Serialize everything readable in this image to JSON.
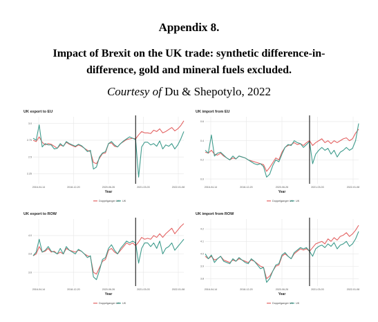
{
  "header": {
    "appendix": "Appendix 8.",
    "title_line1": "Impact of Brexit on the UK trade: synthetic difference-in-",
    "title_line2": "difference, gold and mineral fuels excluded.",
    "courtesy_italic": "Courtesy of",
    "courtesy_rest": " Du & Shepotylo, 2022"
  },
  "colors": {
    "doppelganger": "#e36262",
    "uk": "#3e9b8c",
    "brexit_line": "#000000",
    "grid": "#e6e6e6"
  },
  "chart_data": [
    {
      "type": "line",
      "title": "UK export to EU",
      "xlabel": "Year",
      "xticks": [
        "2016-04-14",
        "2018-12-20",
        "2020-06-26",
        "2021-03-03",
        "2022-01-08"
      ],
      "yticks": [
        "2.25",
        "2.5",
        "2.75",
        "3.0"
      ],
      "ylim": [
        2.1,
        3.1
      ],
      "event_index": 34,
      "legend": [
        "Doppelganger UK",
        "UK"
      ],
      "series": [
        {
          "name": "Doppelganger UK",
          "values": [
            2.75,
            2.73,
            2.8,
            2.72,
            2.68,
            2.7,
            2.69,
            2.66,
            2.63,
            2.68,
            2.66,
            2.72,
            2.69,
            2.67,
            2.65,
            2.68,
            2.66,
            2.63,
            2.6,
            2.58,
            2.42,
            2.4,
            2.48,
            2.55,
            2.56,
            2.7,
            2.71,
            2.66,
            2.65,
            2.7,
            2.73,
            2.76,
            2.77,
            2.78,
            2.77,
            2.83,
            2.88,
            2.86,
            2.86,
            2.85,
            2.9,
            2.88,
            2.92,
            2.86,
            2.88,
            2.91,
            2.94,
            2.89,
            2.92,
            2.97,
            3.04
          ]
        },
        {
          "name": "UK",
          "values": [
            2.78,
            2.75,
            2.98,
            2.65,
            2.7,
            2.68,
            2.68,
            2.62,
            2.63,
            2.7,
            2.66,
            2.73,
            2.7,
            2.68,
            2.66,
            2.69,
            2.67,
            2.63,
            2.58,
            2.6,
            2.32,
            2.35,
            2.5,
            2.56,
            2.58,
            2.7,
            2.73,
            2.68,
            2.65,
            2.7,
            2.74,
            2.77,
            2.8,
            2.78,
            2.76,
            2.2,
            2.65,
            2.72,
            2.72,
            2.68,
            2.7,
            2.66,
            2.74,
            2.62,
            2.68,
            2.66,
            2.7,
            2.62,
            2.68,
            2.77,
            2.88
          ]
        }
      ]
    },
    {
      "type": "line",
      "title": "UK import from EU",
      "xlabel": "Year",
      "xticks": [
        "2016-04-14",
        "2018-12-20",
        "2020-06-26",
        "2021-03-03",
        "2022-01-08"
      ],
      "yticks": [
        "0.0",
        "0.2",
        "0.4",
        "0.6"
      ],
      "ylim": [
        -0.05,
        0.65
      ],
      "event_index": 34,
      "legend": [
        "Doppelganger UK",
        "UK"
      ],
      "series": [
        {
          "name": "Doppelganger UK",
          "values": [
            0.28,
            0.27,
            0.3,
            0.26,
            0.25,
            0.27,
            0.24,
            0.22,
            0.2,
            0.22,
            0.21,
            0.24,
            0.23,
            0.22,
            0.2,
            0.19,
            0.18,
            0.17,
            0.16,
            0.15,
            0.08,
            0.12,
            0.17,
            0.22,
            0.2,
            0.28,
            0.33,
            0.35,
            0.36,
            0.38,
            0.36,
            0.37,
            0.35,
            0.38,
            0.4,
            0.35,
            0.38,
            0.4,
            0.42,
            0.38,
            0.4,
            0.37,
            0.4,
            0.38,
            0.4,
            0.42,
            0.43,
            0.4,
            0.42,
            0.48,
            0.52
          ]
        },
        {
          "name": "UK",
          "values": [
            0.3,
            0.27,
            0.46,
            0.24,
            0.27,
            0.28,
            0.25,
            0.22,
            0.2,
            0.24,
            0.21,
            0.24,
            0.23,
            0.22,
            0.2,
            0.18,
            0.16,
            0.15,
            0.16,
            0.13,
            0.02,
            0.05,
            0.14,
            0.2,
            0.18,
            0.26,
            0.33,
            0.36,
            0.35,
            0.4,
            0.38,
            0.37,
            0.33,
            0.36,
            0.39,
            0.16,
            0.26,
            0.3,
            0.33,
            0.3,
            0.32,
            0.26,
            0.3,
            0.23,
            0.28,
            0.3,
            0.33,
            0.3,
            0.32,
            0.4,
            0.58
          ]
        }
      ]
    },
    {
      "type": "line",
      "title": "UK export to ROW",
      "xlabel": "Year",
      "xticks": [
        "2016-04-14",
        "2018-12-20",
        "2020-06-26",
        "2021-03-03",
        "2022-01-08"
      ],
      "yticks": [
        "3.6",
        "3.8",
        "4.0"
      ],
      "ylim": [
        3.45,
        4.18
      ],
      "event_index": 34,
      "legend": [
        "Doppelganger UK",
        "UK"
      ],
      "series": [
        {
          "name": "Doppelganger UK",
          "values": [
            3.78,
            3.8,
            3.88,
            3.82,
            3.83,
            3.86,
            3.82,
            3.83,
            3.8,
            3.82,
            3.8,
            3.86,
            3.84,
            3.83,
            3.82,
            3.84,
            3.83,
            3.8,
            3.78,
            3.77,
            3.6,
            3.58,
            3.65,
            3.72,
            3.74,
            3.84,
            3.86,
            3.82,
            3.8,
            3.84,
            3.88,
            3.92,
            3.9,
            3.92,
            3.89,
            3.93,
            3.98,
            3.96,
            3.97,
            3.96,
            4.0,
            3.98,
            4.02,
            3.98,
            4.02,
            4.05,
            4.08,
            4.02,
            4.06,
            4.1,
            4.13
          ]
        },
        {
          "name": "UK",
          "values": [
            3.78,
            3.82,
            3.96,
            3.82,
            3.84,
            3.88,
            3.83,
            3.82,
            3.8,
            3.86,
            3.8,
            3.88,
            3.84,
            3.82,
            3.8,
            3.85,
            3.83,
            3.8,
            3.76,
            3.78,
            3.55,
            3.52,
            3.62,
            3.74,
            3.76,
            3.86,
            3.9,
            3.84,
            3.8,
            3.86,
            3.9,
            3.94,
            3.92,
            3.94,
            3.92,
            3.7,
            3.86,
            3.92,
            3.92,
            3.88,
            3.92,
            3.86,
            3.94,
            3.8,
            3.86,
            3.88,
            3.92,
            3.84,
            3.88,
            3.92,
            3.96
          ]
        }
      ]
    },
    {
      "type": "line",
      "title": "UK import from ROW",
      "xlabel": "Year",
      "xticks": [
        "2016-04-14",
        "2018-12-20",
        "2020-06-26",
        "2021-03-03",
        "2022-01-08"
      ],
      "yticks": [
        "3.8",
        "3.9",
        "4.0",
        "4.1",
        "4.2"
      ],
      "ylim": [
        3.74,
        4.28
      ],
      "event_index": 34,
      "legend": [
        "Doppelganger UK",
        "UK"
      ],
      "series": [
        {
          "name": "Doppelganger UK",
          "values": [
            3.98,
            3.96,
            3.98,
            3.95,
            3.96,
            3.98,
            3.95,
            3.94,
            3.93,
            3.95,
            3.94,
            3.96,
            3.95,
            3.94,
            3.93,
            3.95,
            3.94,
            3.92,
            3.9,
            3.89,
            3.8,
            3.82,
            3.86,
            3.9,
            3.91,
            3.98,
            4.0,
            3.98,
            3.96,
            4.0,
            4.02,
            4.04,
            4.03,
            4.04,
            4.02,
            4.05,
            4.08,
            4.09,
            4.1,
            4.08,
            4.12,
            4.1,
            4.13,
            4.11,
            4.14,
            4.15,
            4.17,
            4.14,
            4.16,
            4.19,
            4.23
          ]
        },
        {
          "name": "UK",
          "values": [
            4.0,
            3.96,
            3.99,
            3.93,
            3.96,
            3.98,
            3.94,
            3.93,
            3.92,
            3.96,
            3.94,
            3.97,
            3.95,
            3.93,
            3.92,
            3.96,
            3.94,
            3.91,
            3.88,
            3.89,
            3.77,
            3.8,
            3.86,
            3.91,
            3.92,
            3.99,
            4.01,
            3.98,
            3.96,
            4.01,
            4.03,
            4.05,
            4.04,
            4.05,
            4.02,
            3.98,
            4.04,
            4.06,
            4.07,
            4.05,
            4.08,
            4.06,
            4.09,
            4.04,
            4.07,
            4.08,
            4.1,
            4.06,
            4.08,
            4.12,
            4.18
          ]
        }
      ]
    }
  ]
}
